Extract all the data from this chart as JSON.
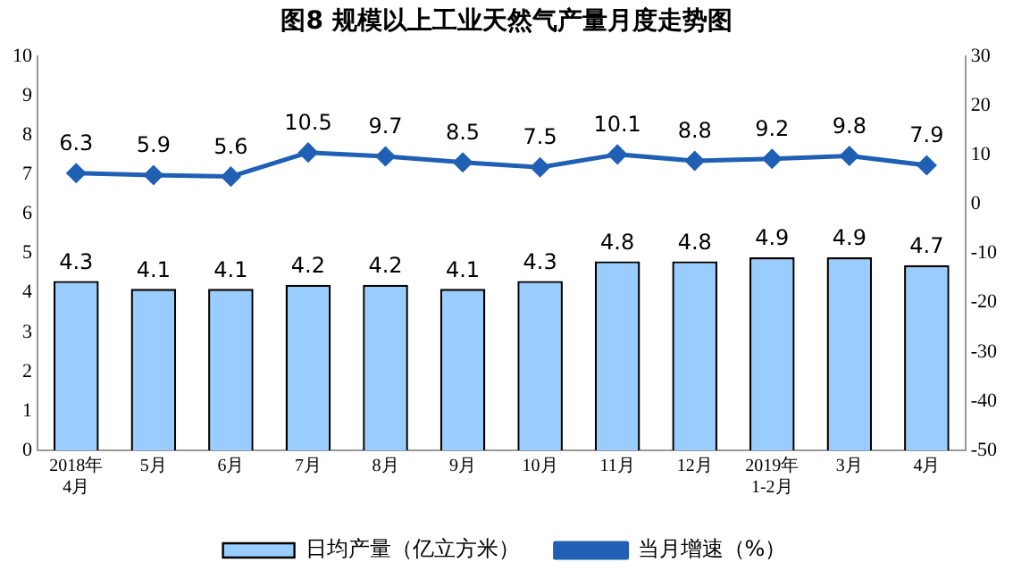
{
  "chart_data": {
    "type": "bar",
    "title": "图8  规模以上工业天然气产量月度走势图",
    "categories": [
      "2018年4月",
      "5月",
      "6月",
      "7月",
      "8月",
      "9月",
      "10月",
      "11月",
      "12月",
      "2019年1-2月",
      "3月",
      "4月"
    ],
    "series": [
      {
        "name": "日均产量（亿立方米）",
        "type": "bar",
        "color": "#99ccff",
        "values": [
          4.3,
          4.1,
          4.1,
          4.2,
          4.2,
          4.1,
          4.3,
          4.8,
          4.8,
          4.9,
          4.9,
          4.7
        ]
      },
      {
        "name": "当月增速（%）",
        "type": "line",
        "axis": "y2",
        "color": "#1f5fb4",
        "marker": "diamond",
        "values": [
          6.3,
          5.9,
          5.6,
          10.5,
          9.7,
          8.5,
          7.5,
          10.1,
          8.8,
          9.2,
          9.8,
          7.9
        ]
      }
    ],
    "ylim": [
      0,
      10
    ],
    "yticks": [
      0,
      1,
      2,
      3,
      4,
      5,
      6,
      7,
      8,
      9,
      10
    ],
    "y2lim": [
      -50,
      30
    ],
    "y2ticks": [
      -50,
      -40,
      -30,
      -20,
      -10,
      0,
      10,
      20,
      30
    ],
    "data_labels": true,
    "grid": false,
    "legend": "bottom"
  }
}
